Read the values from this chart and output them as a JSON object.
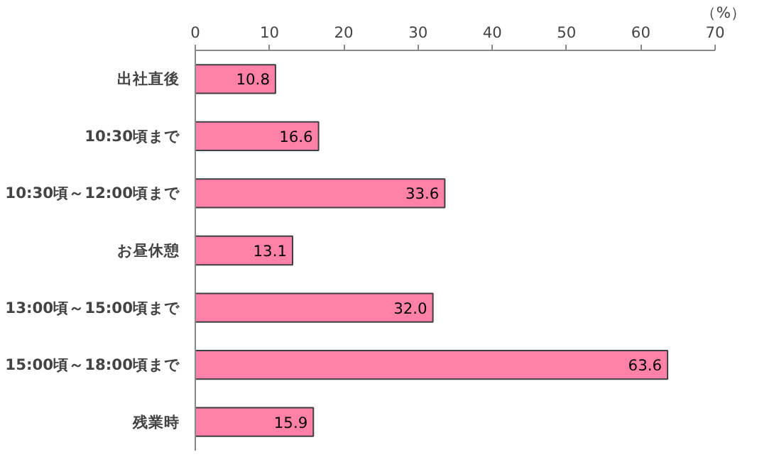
{
  "chart_data": {
    "type": "bar",
    "orientation": "horizontal",
    "categories": [
      "出社直後",
      "10:30頃まで",
      "10:30頃～12:00頃まで",
      "お昼休憩",
      "13:00頃～15:00頃まで",
      "15:00頃～18:00頃まで",
      "残業時"
    ],
    "values": [
      10.8,
      16.6,
      33.6,
      13.1,
      32.0,
      63.6,
      15.9
    ],
    "value_labels": [
      "10.8",
      "16.6",
      "33.6",
      "13.1",
      "32.0",
      "63.6",
      "15.9"
    ],
    "color": "#ff80a8",
    "xlabel": "（%）",
    "xlim": [
      0,
      70
    ],
    "xticks": [
      0,
      10,
      20,
      30,
      40,
      50,
      60,
      70
    ],
    "grid": false
  }
}
